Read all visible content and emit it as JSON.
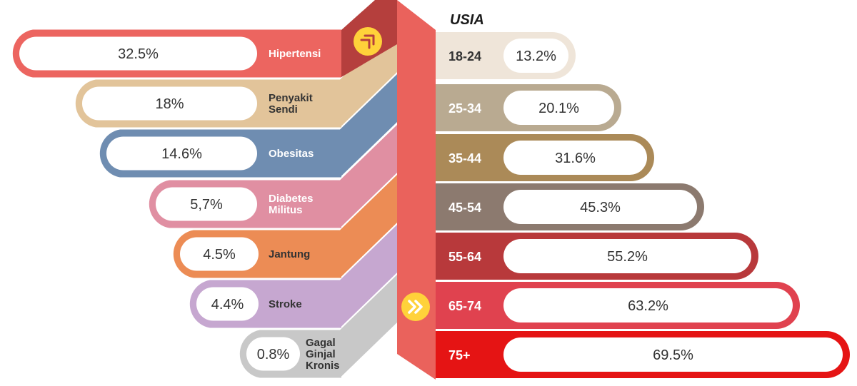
{
  "chart_data": [
    {
      "type": "bar",
      "categories": [
        "Hipertensi",
        "Penyakit Sendi",
        "Obesitas",
        "Diabetes Militus",
        "Jantung",
        "Stroke",
        "Gagal Ginjal Kronis"
      ],
      "value_labels": [
        "32.5%",
        "18%",
        "14.6%",
        "5,7%",
        "4.5%",
        "4.4%",
        "0.8%"
      ],
      "values": [
        32.5,
        18,
        14.6,
        5.7,
        4.5,
        4.4,
        0.8
      ],
      "colors": [
        "#ec6560",
        "#e2c49a",
        "#6f8db1",
        "#e08fa2",
        "#ec8c55",
        "#c6a7d0",
        "#c8c8c8"
      ]
    },
    {
      "type": "bar",
      "title": "USIA",
      "categories": [
        "18-24",
        "25-34",
        "35-44",
        "45-54",
        "55-64",
        "65-74",
        "75+"
      ],
      "value_labels": [
        "13.2%",
        "20.1%",
        "31.6%",
        "45.3%",
        "55.2%",
        "63.2%",
        "69.5%"
      ],
      "values": [
        13.2,
        20.1,
        31.6,
        45.3,
        55.2,
        63.2,
        69.5
      ],
      "colors": [
        "#efe5d9",
        "#b9aa91",
        "#ab8a58",
        "#8c7a6f",
        "#b8393b",
        "#e0424f",
        "#e51414"
      ]
    }
  ],
  "icons": {
    "top": "arrow-up-right-circle-icon",
    "middle": "double-chevron-right-circle-icon",
    "icon_color": "#ffd23a"
  },
  "connector_color": "#ea625c",
  "connector_shade": "#b53f3d"
}
